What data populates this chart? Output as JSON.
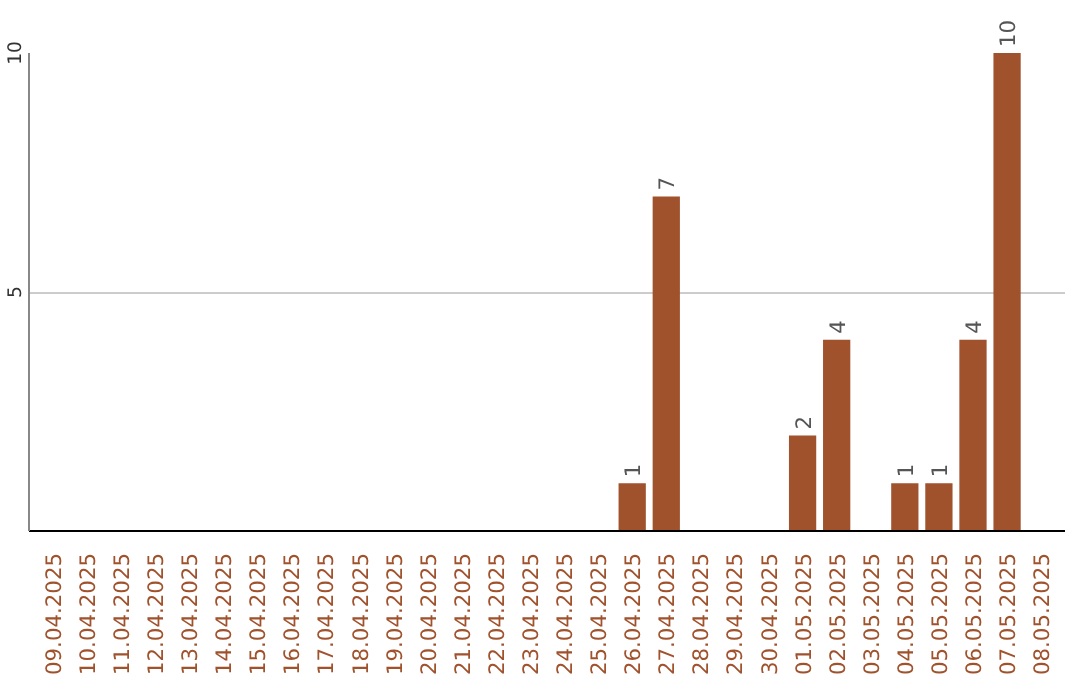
{
  "chart_data": {
    "type": "bar",
    "categories": [
      "09.04.2025",
      "10.04.2025",
      "11.04.2025",
      "12.04.2025",
      "13.04.2025",
      "14.04.2025",
      "15.04.2025",
      "16.04.2025",
      "17.04.2025",
      "18.04.2025",
      "19.04.2025",
      "20.04.2025",
      "21.04.2025",
      "22.04.2025",
      "23.04.2025",
      "24.04.2025",
      "25.04.2025",
      "26.04.2025",
      "27.04.2025",
      "28.04.2025",
      "29.04.2025",
      "30.04.2025",
      "01.05.2025",
      "02.05.2025",
      "03.05.2025",
      "04.05.2025",
      "05.05.2025",
      "06.05.2025",
      "07.05.2025",
      "08.05.2025"
    ],
    "values": [
      0,
      0,
      0,
      0,
      0,
      0,
      0,
      0,
      0,
      0,
      0,
      0,
      0,
      0,
      0,
      0,
      0,
      1,
      7,
      0,
      0,
      0,
      2,
      4,
      0,
      1,
      1,
      4,
      10,
      0
    ],
    "value_labels": [
      null,
      null,
      null,
      null,
      null,
      null,
      null,
      null,
      null,
      null,
      null,
      null,
      null,
      null,
      null,
      null,
      null,
      "1",
      "7",
      null,
      null,
      null,
      "2",
      "4",
      null,
      "1",
      "1",
      "4",
      "10",
      null
    ],
    "color": "#a0522d",
    "ylim": [
      0,
      10
    ],
    "yticks": [
      5,
      10
    ],
    "grid": "y"
  }
}
